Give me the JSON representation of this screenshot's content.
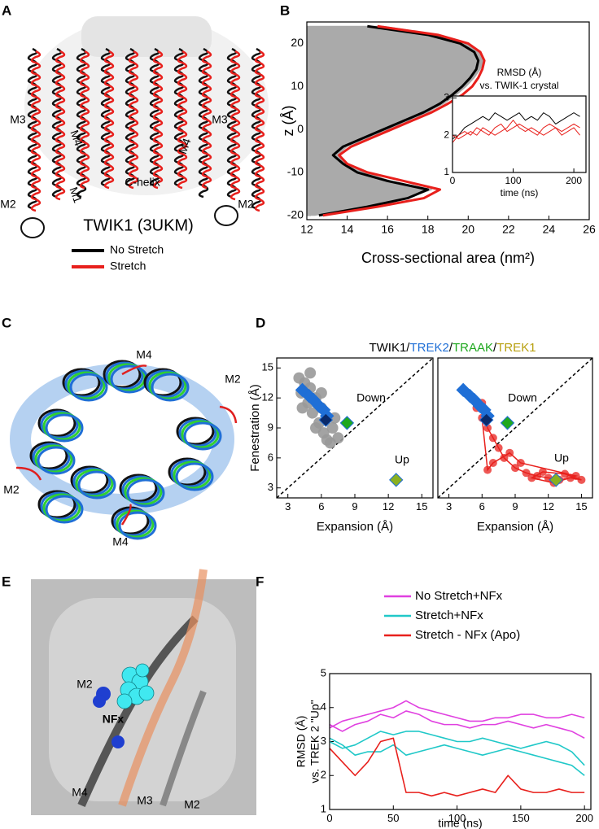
{
  "figure": {
    "panels": [
      "A",
      "B",
      "C",
      "D",
      "E",
      "F"
    ],
    "a_labels": [
      "M3",
      "M4",
      "M1",
      "C-helix",
      "M4",
      "M3",
      "M2",
      "M2",
      "TWIK1 (3UKM)"
    ],
    "c_labels": [
      "M4",
      "M2",
      "M2",
      "M4"
    ],
    "e_labels": [
      "M2",
      "NFx",
      "M4",
      "M3",
      "M2"
    ]
  },
  "chart_data": [
    {
      "type": "line",
      "orientation": "horizontal",
      "xlabel": "Cross-sectional area (nm²)",
      "ylabel": "z (Å)",
      "y": [
        -20,
        -18,
        -16,
        -14,
        -12,
        -10,
        -8,
        -6,
        -4,
        -2,
        0,
        2,
        4,
        6,
        8,
        10,
        12,
        14,
        16,
        18,
        20,
        22,
        24
      ],
      "series": [
        {
          "color": "#aaaaaa",
          "fill": true,
          "values": [
            12.4,
            14.8,
            17.0,
            18.2,
            16.2,
            14.8,
            14.0,
            13.5,
            14.0,
            15.0,
            16.0,
            17.0,
            18.0,
            18.8,
            19.4,
            19.9,
            20.3,
            20.6,
            20.8,
            20.6,
            20.0,
            18.6,
            15.8
          ]
        },
        {
          "name": "No Stretch",
          "color": "#000000",
          "values": [
            12.6,
            15.0,
            17.0,
            18.0,
            16.0,
            14.5,
            13.8,
            13.3,
            13.8,
            14.8,
            15.8,
            16.8,
            17.8,
            18.6,
            19.2,
            19.7,
            20.1,
            20.4,
            20.5,
            20.3,
            19.6,
            18.0,
            15.0
          ]
        },
        {
          "name": "Stretch",
          "color": "#e8201c",
          "values": [
            12.8,
            15.5,
            17.8,
            18.6,
            16.8,
            15.0,
            14.0,
            13.6,
            14.2,
            15.2,
            16.2,
            17.2,
            18.2,
            19.0,
            19.7,
            20.2,
            20.5,
            20.7,
            20.8,
            20.6,
            20.0,
            18.5,
            15.5
          ]
        }
      ],
      "xlim": [
        12,
        26
      ],
      "ylim": [
        -21,
        25
      ],
      "xticks": [
        12,
        14,
        16,
        18,
        20,
        22,
        24,
        26
      ],
      "yticks": [
        -20,
        -10,
        0,
        10,
        20
      ]
    },
    {
      "type": "line",
      "title": [
        "RMSD (Å)",
        "vs. TWIK-1 crystal"
      ],
      "xlabel": "time (ns)",
      "x": [
        0,
        10,
        20,
        30,
        40,
        50,
        60,
        70,
        80,
        90,
        100,
        110,
        120,
        130,
        140,
        150,
        160,
        170,
        180,
        190,
        200,
        210
      ],
      "series": [
        {
          "color": "#000000",
          "values": [
            1.9,
            2.0,
            2.2,
            2.3,
            2.4,
            2.5,
            2.4,
            2.6,
            2.5,
            2.4,
            2.5,
            2.6,
            2.4,
            2.5,
            2.4,
            2.6,
            2.5,
            2.3,
            2.4,
            2.5,
            2.6,
            2.5
          ]
        },
        {
          "color": "#e8201c",
          "values": [
            1.8,
            2.0,
            2.1,
            2.0,
            2.2,
            2.1,
            2.0,
            2.2,
            2.3,
            2.1,
            2.2,
            2.3,
            2.2,
            2.1,
            2.0,
            2.2,
            2.3,
            2.2,
            2.1,
            2.2,
            2.3,
            2.2
          ]
        },
        {
          "color": "#e8201c",
          "values": [
            2.0,
            1.9,
            2.0,
            2.1,
            2.0,
            2.2,
            2.1,
            2.0,
            2.1,
            2.2,
            2.4,
            2.2,
            2.1,
            2.2,
            2.1,
            2.0,
            2.1,
            2.2,
            2.0,
            2.1,
            2.2,
            2.0
          ]
        }
      ],
      "xlim": [
        0,
        220
      ],
      "ylim": [
        1,
        3.05
      ],
      "xticks": [
        0,
        100,
        200
      ],
      "yticks": [
        1,
        2,
        3
      ]
    },
    {
      "type": "scatter",
      "title_parts": [
        {
          "text": "TWIK1/",
          "color": "#000000"
        },
        {
          "text": "TREK2",
          "color": "#1f6fd6"
        },
        {
          "text": "/",
          "color": "#000000"
        },
        {
          "text": "TRAAK",
          "color": "#1fa81f"
        },
        {
          "text": "/",
          "color": "#000000"
        },
        {
          "text": "TREK1",
          "color": "#b8a010"
        }
      ],
      "xlabel": "Expansion (Å)",
      "ylabel": "Fenestration (Å)",
      "annotations": [
        "Down",
        "Up"
      ],
      "diagonal": true,
      "series": [
        {
          "color": "#999999",
          "marker": "circle",
          "x": [
            4,
            4.5,
            5,
            4.2,
            5.5,
            4.8,
            6,
            5.2,
            6.5,
            5.8,
            7,
            6.2,
            7.5,
            6.8,
            5,
            4.3,
            6,
            7.2,
            5.5,
            6.5
          ],
          "values": [
            14,
            13.5,
            13,
            12.5,
            12,
            11.5,
            11,
            10.5,
            10,
            9.5,
            9,
            8.5,
            8,
            7.5,
            14.5,
            11,
            12.5,
            10,
            9,
            7.8
          ]
        },
        {
          "color": "#1f6fd6",
          "marker": "diamond",
          "x": [
            4.3,
            4.9,
            5.3,
            5.8,
            6.2,
            6.5
          ],
          "values": [
            12.8,
            12.2,
            11.8,
            11.2,
            10.8,
            10.2
          ]
        },
        {
          "color": "#0a2a6a",
          "marker": "diamond",
          "x": [
            6.4
          ],
          "values": [
            9.8
          ]
        },
        {
          "color": "#1fa81f",
          "marker": "diamond",
          "x": [
            8.3
          ],
          "values": [
            9.5
          ]
        },
        {
          "color": "#8ab020",
          "marker": "diamond",
          "x": [
            12.7
          ],
          "values": [
            3.8
          ]
        }
      ],
      "xlim": [
        2,
        16
      ],
      "ylim": [
        2,
        16
      ],
      "xticks": [
        3,
        6,
        9,
        12,
        15
      ],
      "yticks": [
        3,
        6,
        9,
        12,
        15
      ]
    },
    {
      "type": "scatter",
      "xlabel": "Expansion (Å)",
      "annotations": [
        "Down",
        "Up"
      ],
      "diagonal": true,
      "series": [
        {
          "color": "#e8201c",
          "marker": "circle",
          "line": true,
          "x": [
            5,
            5.5,
            6,
            6.5,
            7,
            7.5,
            8,
            9,
            10,
            11,
            12,
            13,
            14,
            15,
            13.5,
            11.5,
            10.5,
            12.5,
            14.5,
            9.5,
            8.5,
            7,
            6.5,
            6
          ],
          "values": [
            12,
            11,
            11.5,
            9,
            8,
            7,
            6,
            5,
            4.5,
            4.2,
            4,
            3.8,
            4,
            3.8,
            4.4,
            4.6,
            4,
            3.5,
            4.2,
            5.5,
            6.5,
            5.5,
            4.8,
            10
          ]
        },
        {
          "color": "#1f6fd6",
          "marker": "diamond",
          "x": [
            4.3,
            4.9,
            5.3,
            5.8,
            6.2,
            6.5
          ],
          "values": [
            12.8,
            12.2,
            11.8,
            11.2,
            10.8,
            10.2
          ]
        },
        {
          "color": "#0a2a6a",
          "marker": "diamond",
          "x": [
            6.4
          ],
          "values": [
            9.8
          ]
        },
        {
          "color": "#1fa81f",
          "marker": "diamond",
          "x": [
            8.3
          ],
          "values": [
            9.5
          ]
        },
        {
          "color": "#8ab020",
          "marker": "diamond",
          "x": [
            12.7
          ],
          "values": [
            3.8
          ]
        }
      ],
      "xlim": [
        2,
        16
      ],
      "ylim": [
        2,
        16
      ],
      "xticks": [
        3,
        6,
        9,
        12,
        15
      ]
    },
    {
      "type": "line",
      "xlabel": "time (ns)",
      "ylabel": [
        "RMSD (Å)",
        "vs. TREK 2 \"Up\""
      ],
      "x": [
        0,
        10,
        20,
        30,
        40,
        50,
        60,
        70,
        80,
        90,
        100,
        110,
        120,
        130,
        140,
        150,
        160,
        170,
        180,
        190,
        200
      ],
      "series": [
        {
          "name": "No Stretch+NFx",
          "color": "#e040e0",
          "values": [
            3.4,
            3.6,
            3.7,
            3.8,
            3.9,
            4.0,
            4.2,
            4.0,
            3.9,
            3.8,
            3.7,
            3.6,
            3.6,
            3.7,
            3.7,
            3.8,
            3.8,
            3.7,
            3.7,
            3.8,
            3.7
          ]
        },
        {
          "color": "#e040e0",
          "values": [
            3.5,
            3.3,
            3.5,
            3.6,
            3.8,
            3.7,
            3.9,
            3.8,
            3.6,
            3.5,
            3.5,
            3.4,
            3.5,
            3.5,
            3.6,
            3.5,
            3.4,
            3.5,
            3.4,
            3.3,
            3.1
          ]
        },
        {
          "name": "Stretch+NFx",
          "color": "#20c8c8",
          "values": [
            3.0,
            2.8,
            2.9,
            3.1,
            3.3,
            3.2,
            3.3,
            3.3,
            3.2,
            3.1,
            3.0,
            3.0,
            3.1,
            3.0,
            2.9,
            2.8,
            2.9,
            3.0,
            2.9,
            2.7,
            2.3
          ]
        },
        {
          "color": "#20c8c8",
          "values": [
            3.1,
            2.9,
            2.6,
            2.7,
            2.7,
            2.9,
            2.6,
            2.7,
            2.8,
            2.9,
            2.8,
            2.7,
            2.6,
            2.7,
            2.8,
            2.7,
            2.6,
            2.5,
            2.4,
            2.3,
            2.0
          ]
        },
        {
          "name": "Stretch - NFx (Apo)",
          "color": "#e8201c",
          "values": [
            2.8,
            2.4,
            2.0,
            2.4,
            3.0,
            3.1,
            1.5,
            1.5,
            1.4,
            1.5,
            1.4,
            1.5,
            1.6,
            1.5,
            2.0,
            1.6,
            1.5,
            1.5,
            1.6,
            1.5,
            1.5
          ]
        }
      ],
      "xlim": [
        0,
        205
      ],
      "ylim": [
        1,
        5
      ],
      "xticks": [
        0,
        50,
        100,
        150,
        200
      ],
      "yticks": [
        1,
        2,
        3,
        4,
        5
      ]
    }
  ]
}
